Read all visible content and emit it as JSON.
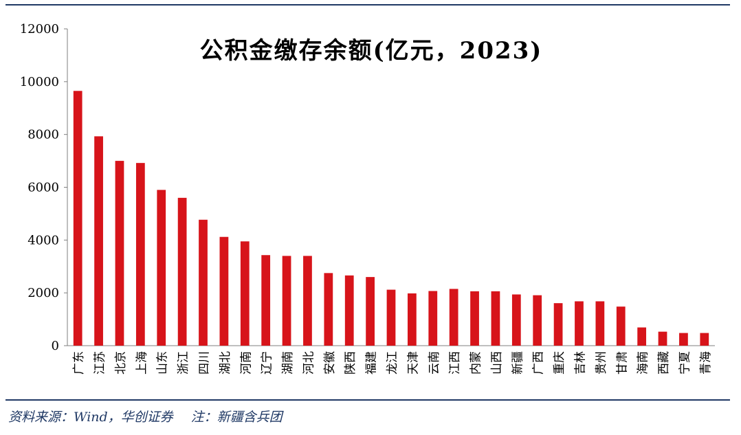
{
  "chart_data": {
    "type": "bar",
    "title": "公积金缴存余额(亿元，2023)",
    "categories": [
      "广东",
      "江苏",
      "北京",
      "上海",
      "山东",
      "浙江",
      "四川",
      "湖北",
      "河南",
      "辽宁",
      "湖南",
      "河北",
      "安徽",
      "陕西",
      "福建",
      "龙江",
      "天津",
      "云南",
      "江西",
      "内蒙",
      "山西",
      "新疆",
      "广西",
      "重庆",
      "吉林",
      "贵州",
      "甘肃",
      "海南",
      "西藏",
      "宁夏",
      "青海"
    ],
    "values": [
      9650,
      7930,
      7000,
      6920,
      5900,
      5600,
      4770,
      4120,
      3950,
      3430,
      3400,
      3400,
      2750,
      2660,
      2600,
      2120,
      1980,
      2070,
      2150,
      2060,
      2060,
      1940,
      1910,
      1610,
      1680,
      1680,
      1480,
      690,
      530,
      480,
      480
    ],
    "ylim": [
      0,
      12000
    ],
    "yticks": [
      0,
      2000,
      4000,
      6000,
      8000,
      10000,
      12000
    ],
    "xlabel": "",
    "ylabel": "",
    "grid": false,
    "bar_color": "#d7141a"
  },
  "footer": {
    "source": "资料来源：Wind，华创证券",
    "note": "注：新疆含兵团"
  },
  "colors": {
    "rule": "#1f3864",
    "bar": "#d7141a"
  }
}
